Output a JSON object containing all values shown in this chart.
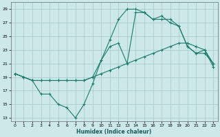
{
  "xlabel": "Humidex (Indice chaleur)",
  "background_color": "#cce8e8",
  "grid_color": "#aacccc",
  "line_color": "#1a7a6a",
  "xlim": [
    -0.5,
    23.5
  ],
  "ylim": [
    12.5,
    30.0
  ],
  "yticks": [
    13,
    15,
    17,
    19,
    21,
    23,
    25,
    27,
    29
  ],
  "xticks": [
    0,
    1,
    2,
    3,
    4,
    5,
    6,
    7,
    8,
    9,
    10,
    11,
    12,
    13,
    14,
    15,
    16,
    17,
    18,
    19,
    20,
    21,
    22,
    23
  ],
  "line1_x": [
    0,
    1,
    2,
    3,
    4,
    5,
    6,
    7,
    8,
    9,
    10,
    11,
    12,
    13,
    14,
    15,
    16,
    17,
    18,
    19,
    20,
    21,
    22,
    23
  ],
  "line1_y": [
    19.5,
    19.0,
    18.5,
    18.5,
    18.5,
    18.5,
    18.5,
    18.5,
    18.5,
    19.0,
    19.5,
    20.0,
    20.5,
    21.0,
    21.5,
    22.0,
    22.5,
    23.0,
    23.5,
    24.0,
    24.0,
    23.5,
    23.0,
    20.5
  ],
  "line2_x": [
    0,
    1,
    2,
    3,
    4,
    5,
    6,
    7,
    8,
    9,
    10,
    11,
    12,
    13,
    14,
    15,
    16,
    17,
    18,
    19,
    20,
    21,
    22,
    23
  ],
  "line2_y": [
    19.5,
    19.0,
    18.5,
    16.5,
    16.5,
    15.0,
    14.5,
    13.0,
    15.0,
    18.0,
    21.5,
    23.5,
    24.0,
    21.0,
    28.5,
    28.5,
    27.5,
    27.5,
    27.5,
    26.5,
    23.5,
    22.5,
    22.5,
    21.0
  ],
  "line3_x": [
    0,
    1,
    2,
    3,
    4,
    5,
    6,
    7,
    8,
    9,
    10,
    11,
    12,
    13,
    14,
    15,
    16,
    17,
    18,
    19,
    20,
    21,
    22,
    23
  ],
  "line3_y": [
    19.5,
    19.0,
    18.5,
    18.5,
    18.5,
    18.5,
    18.5,
    18.5,
    18.5,
    19.0,
    21.5,
    24.5,
    27.5,
    29.0,
    29.0,
    28.5,
    27.5,
    28.0,
    27.0,
    26.5,
    23.5,
    22.5,
    23.0,
    21.0
  ]
}
